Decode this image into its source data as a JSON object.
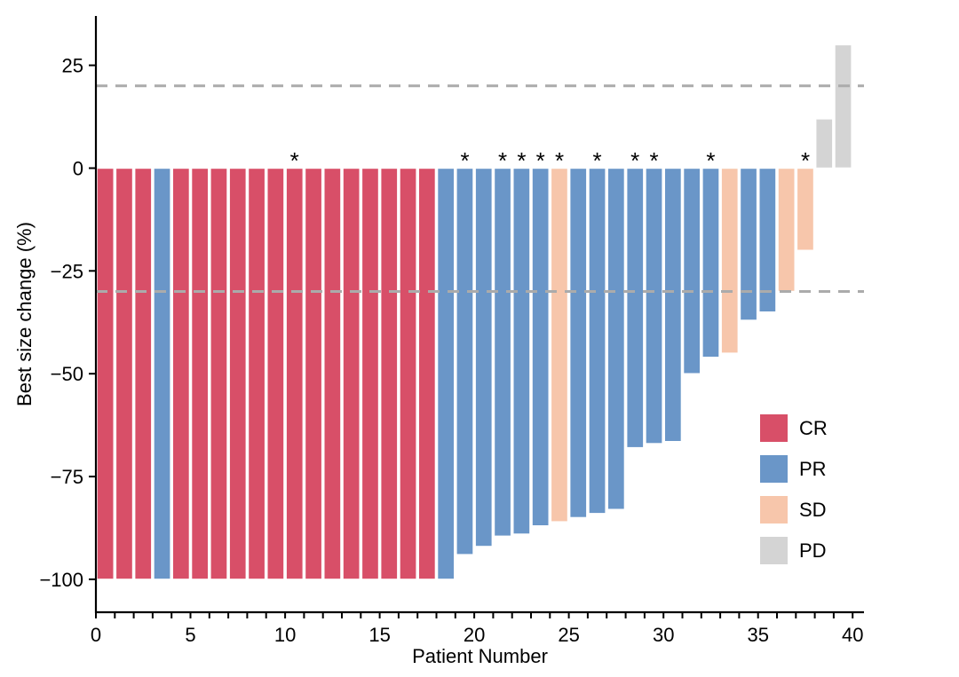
{
  "figure": {
    "background": "#ffffff"
  },
  "chart_data": {
    "type": "bar",
    "subtype": "waterfall",
    "title": "",
    "xlabel": "Patient Number",
    "ylabel": "Best size change (%)",
    "x_ticks": [
      0,
      5,
      10,
      15,
      20,
      25,
      30,
      35,
      40
    ],
    "x_minor_tick_step": 1,
    "y_ticks": [
      25,
      0,
      -25,
      -50,
      -75,
      -100
    ],
    "xlim": [
      0,
      40.6
    ],
    "ylim": [
      -108,
      37
    ],
    "grid": false,
    "reference_lines": [
      {
        "y": 20,
        "style": "dashed",
        "color": "#ABABAB"
      },
      {
        "y": -30,
        "style": "dashed",
        "color": "#ABABAB"
      }
    ],
    "legend_position": "right-inside",
    "legend": [
      {
        "label": "CR",
        "color": "#D84F68"
      },
      {
        "label": "PR",
        "color": "#6A96C8"
      },
      {
        "label": "SD",
        "color": "#F7C6AB"
      },
      {
        "label": "PD",
        "color": "#D4D4D4"
      }
    ],
    "bar_outline_color": "#FFFFFF",
    "annotation_symbol": "*",
    "bars": [
      {
        "patient": 1,
        "value": -100,
        "response": "CR",
        "star": false
      },
      {
        "patient": 2,
        "value": -100,
        "response": "CR",
        "star": false
      },
      {
        "patient": 3,
        "value": -100,
        "response": "CR",
        "star": false
      },
      {
        "patient": 4,
        "value": -100,
        "response": "PR",
        "star": false
      },
      {
        "patient": 5,
        "value": -100,
        "response": "CR",
        "star": false
      },
      {
        "patient": 6,
        "value": -100,
        "response": "CR",
        "star": false
      },
      {
        "patient": 7,
        "value": -100,
        "response": "CR",
        "star": false
      },
      {
        "patient": 8,
        "value": -100,
        "response": "CR",
        "star": false
      },
      {
        "patient": 9,
        "value": -100,
        "response": "CR",
        "star": false
      },
      {
        "patient": 10,
        "value": -100,
        "response": "CR",
        "star": false
      },
      {
        "patient": 11,
        "value": -100,
        "response": "CR",
        "star": true
      },
      {
        "patient": 12,
        "value": -100,
        "response": "CR",
        "star": false
      },
      {
        "patient": 13,
        "value": -100,
        "response": "CR",
        "star": false
      },
      {
        "patient": 14,
        "value": -100,
        "response": "CR",
        "star": false
      },
      {
        "patient": 15,
        "value": -100,
        "response": "CR",
        "star": false
      },
      {
        "patient": 16,
        "value": -100,
        "response": "CR",
        "star": false
      },
      {
        "patient": 17,
        "value": -100,
        "response": "CR",
        "star": false
      },
      {
        "patient": 18,
        "value": -100,
        "response": "CR",
        "star": false
      },
      {
        "patient": 19,
        "value": -100,
        "response": "PR",
        "star": false
      },
      {
        "patient": 20,
        "value": -94,
        "response": "PR",
        "star": true
      },
      {
        "patient": 21,
        "value": -92,
        "response": "PR",
        "star": false
      },
      {
        "patient": 22,
        "value": -89.5,
        "response": "PR",
        "star": true
      },
      {
        "patient": 23,
        "value": -89,
        "response": "PR",
        "star": true
      },
      {
        "patient": 24,
        "value": -87,
        "response": "PR",
        "star": true
      },
      {
        "patient": 25,
        "value": -86,
        "response": "SD",
        "star": true
      },
      {
        "patient": 26,
        "value": -85,
        "response": "PR",
        "star": false
      },
      {
        "patient": 27,
        "value": -84,
        "response": "PR",
        "star": true
      },
      {
        "patient": 28,
        "value": -83,
        "response": "PR",
        "star": false
      },
      {
        "patient": 29,
        "value": -68,
        "response": "PR",
        "star": true
      },
      {
        "patient": 30,
        "value": -67,
        "response": "PR",
        "star": true
      },
      {
        "patient": 31,
        "value": -66.5,
        "response": "PR",
        "star": false
      },
      {
        "patient": 32,
        "value": -50,
        "response": "PR",
        "star": false
      },
      {
        "patient": 33,
        "value": -46,
        "response": "PR",
        "star": true
      },
      {
        "patient": 34,
        "value": -45,
        "response": "SD",
        "star": false
      },
      {
        "patient": 35,
        "value": -37,
        "response": "PR",
        "star": false
      },
      {
        "patient": 36,
        "value": -35,
        "response": "PR",
        "star": false
      },
      {
        "patient": 37,
        "value": -30,
        "response": "SD",
        "star": false
      },
      {
        "patient": 38,
        "value": -20,
        "response": "SD",
        "star": true
      },
      {
        "patient": 39,
        "value": 12,
        "response": "PD",
        "star": false
      },
      {
        "patient": 40,
        "value": 30,
        "response": "PD",
        "star": false
      }
    ]
  }
}
